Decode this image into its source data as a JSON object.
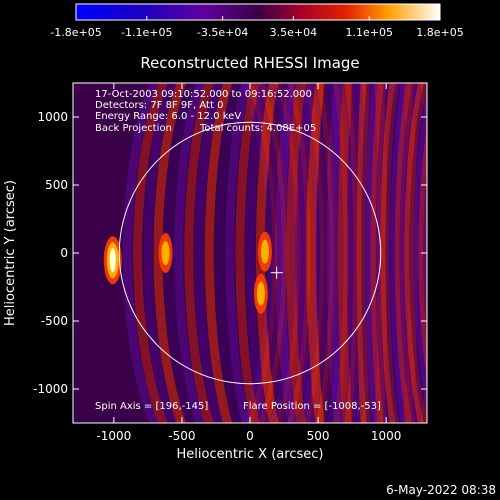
{
  "footer": {
    "timestamp": "6-May-2022 08:38"
  },
  "chart_data": {
    "type": "heatmap",
    "title": "Reconstructed RHESSI Image",
    "xlabel": "Heliocentric X (arcsec)",
    "ylabel": "Heliocentric Y (arcsec)",
    "xlim": [
      -1300,
      1300
    ],
    "ylim": [
      -1250,
      1250
    ],
    "xticks": [
      -1000,
      -500,
      0,
      500,
      1000
    ],
    "yticks": [
      -1000,
      -500,
      0,
      500,
      1000
    ],
    "colorbar": {
      "range": [
        -180000,
        180000
      ],
      "tick_labels": [
        "-1.8e+05",
        "-1.1e+05",
        "-3.5e+04",
        "3.5e+04",
        "1.1e+05",
        "1.8e+05"
      ],
      "tick_values": [
        -180000,
        -110000,
        -35000,
        35000,
        110000,
        180000
      ]
    },
    "annotations": {
      "time_range": "17-Oct-2003 09:10:52.000 to 09:16:52.000",
      "detectors": "Detectors: 7F 8F 9F, Att 0",
      "energy_range": "Energy Range: 6.0 - 12.0 keV",
      "method": "Back Projection",
      "total_counts": "Total counts: 4.08E+05",
      "spin_axis": "Spin Axis = [196,-145]",
      "flare_position": "Flare Position = [-1008,-53]"
    },
    "solar_limb_radius_arcsec": 960,
    "marker": {
      "label": "spin axis cross",
      "x": 196,
      "y": -145
    },
    "bright_sources": [
      {
        "x": -1008,
        "y": -53,
        "level": 180000
      },
      {
        "x": -620,
        "y": 0,
        "level": 130000
      },
      {
        "x": 110,
        "y": 10,
        "level": 90000
      },
      {
        "x": 80,
        "y": -300,
        "level": 80000
      }
    ],
    "colors": {
      "background": "#000000",
      "limb": "#ffffff",
      "text": "#ffffff"
    }
  }
}
